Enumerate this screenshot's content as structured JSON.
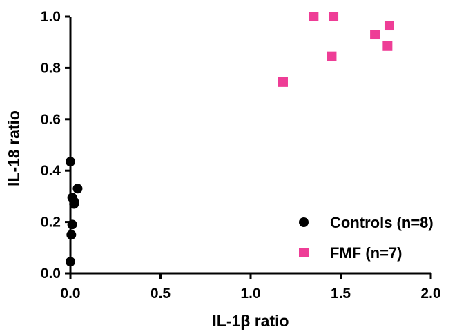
{
  "chart_data": {
    "type": "scatter",
    "xlabel": "IL-1β ratio",
    "ylabel": "IL-18 ratio",
    "xlim": [
      0,
      2.0
    ],
    "ylim": [
      0,
      1.0
    ],
    "x_ticks": [
      0.0,
      0.5,
      1.0,
      1.5,
      2.0
    ],
    "x_tick_labels": [
      "0.0",
      "0.5",
      "1.0",
      "1.5",
      "2.0"
    ],
    "y_ticks": [
      0.0,
      0.2,
      0.4,
      0.6,
      0.8,
      1.0
    ],
    "y_tick_labels": [
      "0.0",
      "0.2",
      "0.4",
      "0.6",
      "0.8",
      "1.0"
    ],
    "grid": false,
    "legend_position": "bottom-right",
    "series": [
      {
        "name": "Controls (n=8)",
        "marker": "circle",
        "color": "#000000",
        "points": [
          {
            "x": 0.0,
            "y": 0.435
          },
          {
            "x": 0.04,
            "y": 0.33
          },
          {
            "x": 0.01,
            "y": 0.295
          },
          {
            "x": 0.02,
            "y": 0.27
          },
          {
            "x": 0.01,
            "y": 0.19
          },
          {
            "x": 0.005,
            "y": 0.15
          },
          {
            "x": 0.0,
            "y": 0.045
          },
          {
            "x": 0.02,
            "y": 0.28
          }
        ]
      },
      {
        "name": "FMF (n=7)",
        "marker": "square",
        "color": "#ee3d96",
        "points": [
          {
            "x": 1.35,
            "y": 1.0
          },
          {
            "x": 1.46,
            "y": 1.0
          },
          {
            "x": 1.45,
            "y": 0.845
          },
          {
            "x": 1.18,
            "y": 0.745
          },
          {
            "x": 1.69,
            "y": 0.93
          },
          {
            "x": 1.77,
            "y": 0.965
          },
          {
            "x": 1.76,
            "y": 0.885
          }
        ]
      }
    ]
  }
}
